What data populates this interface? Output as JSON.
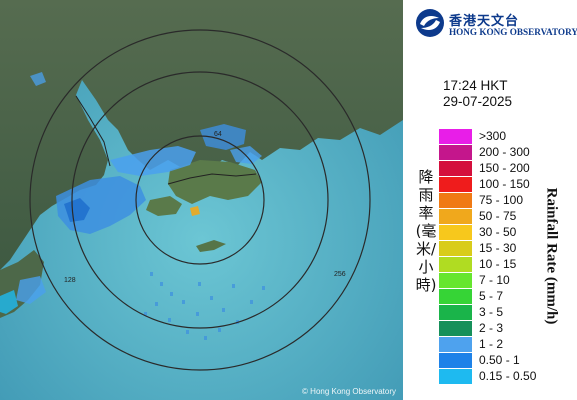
{
  "logo": {
    "icon": "hko-logo-icon",
    "name_cn": "香港天文台",
    "name_en": "HONG KONG OBSERVATORY"
  },
  "time": "17:24 HKT",
  "date": "29-07-2025",
  "legend": {
    "title_cn": "降雨率(毫米/小時)",
    "title_en": "Rainfall Rate (mm/h)",
    "items": [
      {
        "label": ">300",
        "color": "#e81ee8"
      },
      {
        "label": "200 - 300",
        "color": "#c4168c"
      },
      {
        "label": "150 - 200",
        "color": "#d40f3c"
      },
      {
        "label": "100 - 150",
        "color": "#ef1c1c"
      },
      {
        "label": "75 - 100",
        "color": "#f07a14"
      },
      {
        "label": "50 - 75",
        "color": "#f0a81c"
      },
      {
        "label": "30 - 50",
        "color": "#f7c81c"
      },
      {
        "label": "15 - 30",
        "color": "#d9cc1a"
      },
      {
        "label": "10 - 15",
        "color": "#b0dc22"
      },
      {
        "label": "7 - 10",
        "color": "#66e62e"
      },
      {
        "label": "5 - 7",
        "color": "#36d436"
      },
      {
        "label": "3 - 5",
        "color": "#1ab44a"
      },
      {
        "label": "2 - 3",
        "color": "#16905a"
      },
      {
        "label": "1 - 2",
        "color": "#4ea2ee"
      },
      {
        "label": "0.50 - 1",
        "color": "#1e82e8"
      },
      {
        "label": "0.15 - 0.50",
        "color": "#1ebaf0"
      }
    ]
  },
  "map": {
    "range_rings": [
      "64",
      "128",
      "256"
    ],
    "land_color": "#4f6a4c",
    "sea_color": "#5fb6c8"
  },
  "copyright": "© Hong Kong Observatory"
}
